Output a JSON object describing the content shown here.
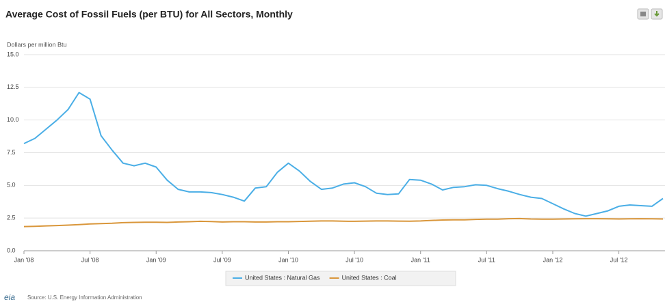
{
  "chart_data": {
    "type": "line",
    "title": "Average Cost of Fossil Fuels (per BTU) for All Sectors, Monthly",
    "y_label": "Dollars per million Btu",
    "source": "Source: U.S. Energy Information Administration",
    "logo": "eia",
    "categories": [
      "Jan '08",
      null,
      null,
      null,
      null,
      null,
      "Jul '08",
      null,
      null,
      null,
      null,
      null,
      "Jan '09",
      null,
      null,
      null,
      null,
      null,
      "Jul '09",
      null,
      null,
      null,
      null,
      null,
      "Jan '10",
      null,
      null,
      null,
      null,
      null,
      "Jul '10",
      null,
      null,
      null,
      null,
      null,
      "Jan '11",
      null,
      null,
      null,
      null,
      null,
      "Jul '11",
      null,
      null,
      null,
      null,
      null,
      "Jan '12",
      null,
      null,
      null,
      null,
      null,
      "Jul '12",
      null,
      null,
      null,
      null
    ],
    "series": [
      {
        "name": "United States : Natural Gas",
        "color": "#4aaee6",
        "values": [
          8.2,
          8.6,
          9.3,
          10.0,
          10.8,
          12.1,
          11.6,
          8.8,
          7.7,
          6.7,
          6.5,
          6.7,
          6.4,
          5.4,
          4.7,
          4.5,
          4.5,
          4.45,
          4.3,
          4.1,
          3.8,
          4.8,
          4.9,
          6.0,
          6.7,
          6.1,
          5.3,
          4.7,
          4.8,
          5.1,
          5.2,
          4.9,
          4.4,
          4.3,
          4.35,
          5.45,
          5.4,
          5.1,
          4.65,
          4.85,
          4.9,
          5.05,
          5.0,
          4.75,
          4.55,
          4.3,
          4.1,
          4.0,
          3.6,
          3.2,
          2.85,
          2.65,
          2.85,
          3.05,
          3.4,
          3.5,
          3.45,
          3.4,
          4.0
        ]
      },
      {
        "name": "United States : Coal",
        "color": "#d9963a",
        "values": [
          1.85,
          1.87,
          1.9,
          1.93,
          1.96,
          2.0,
          2.05,
          2.08,
          2.1,
          2.15,
          2.17,
          2.18,
          2.18,
          2.17,
          2.2,
          2.22,
          2.25,
          2.23,
          2.2,
          2.22,
          2.22,
          2.2,
          2.2,
          2.22,
          2.22,
          2.24,
          2.26,
          2.28,
          2.28,
          2.26,
          2.25,
          2.27,
          2.28,
          2.28,
          2.27,
          2.26,
          2.28,
          2.32,
          2.35,
          2.36,
          2.37,
          2.4,
          2.42,
          2.42,
          2.45,
          2.46,
          2.43,
          2.42,
          2.42,
          2.43,
          2.44,
          2.45,
          2.45,
          2.44,
          2.43,
          2.44,
          2.45,
          2.44,
          2.43
        ]
      }
    ],
    "ylim": [
      0,
      15
    ],
    "yticks": [
      {
        "value": 0,
        "label": "0.0"
      },
      {
        "value": 2.5,
        "label": "2.5"
      },
      {
        "value": 5,
        "label": "5.0"
      },
      {
        "value": 7.5,
        "label": "7.5"
      },
      {
        "value": 10,
        "label": "10.0"
      },
      {
        "value": 12.5,
        "label": "12.5"
      },
      {
        "value": 15,
        "label": "15.0"
      }
    ],
    "grid": true,
    "legend": "bottom"
  }
}
